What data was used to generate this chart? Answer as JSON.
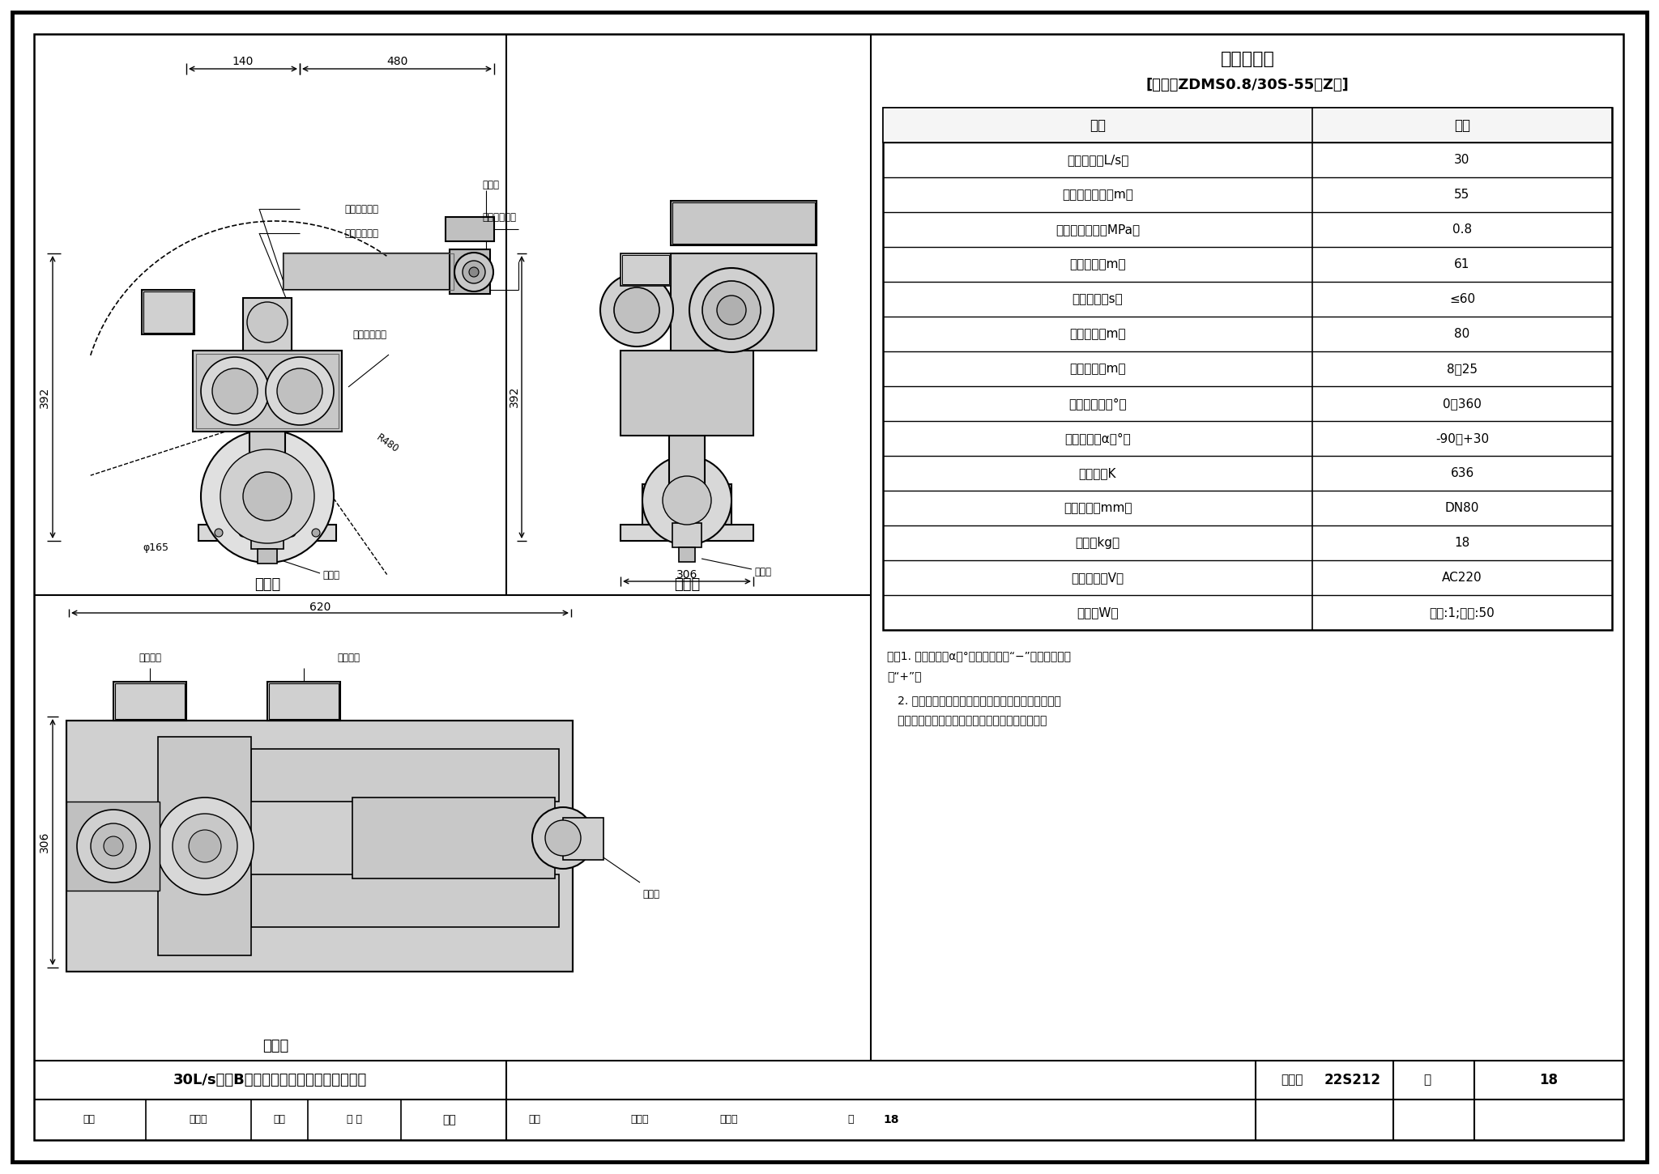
{
  "bg_color": "#ffffff",
  "border_color": "#000000",
  "table_title": "装置参数表",
  "table_model": "[型号：ZDMS0.8/30S-55（Z）]",
  "table_headers": [
    "项目",
    "指标"
  ],
  "table_rows": [
    [
      "额定流量（L/s）",
      "30"
    ],
    [
      "最大保护半径（m）",
      "55"
    ],
    [
      "额定工作压力（MPa）",
      "0.8"
    ],
    [
      "射流半径（m）",
      "61"
    ],
    [
      "定位时间（s）",
      "≤60"
    ],
    [
      "监控半径（m）",
      "80"
    ],
    [
      "安装高度（m）",
      "8～25"
    ],
    [
      "水平回转角（°）",
      "0～360"
    ],
    [
      "俰仰回转角α（°）",
      "-90～+30"
    ],
    [
      "流量系数K",
      "636"
    ],
    [
      "接口尺寸（mm）",
      "DN80"
    ],
    [
      "重量（kg）",
      "18"
    ],
    [
      "电机电压（V）",
      "AC220"
    ],
    [
      "功率（W）",
      "监视:1;扫描:50"
    ]
  ],
  "note1a": "注：1. 俰仰回转角α（°）为俰角时为“−”，为仰俰角时",
  "note1b": "为“+”。",
  "note2a": "   2. 自动消防炮在系统自动状态下，只能以平射和向下",
  "note2b": "   方喷射进行瞀准灭火，而不能做到仰射瞀准火源。",
  "front_view_label": "正视图",
  "side_view_label": "侧视图",
  "top_view_label": "俦视图",
  "dim_140": "140",
  "dim_480": "480",
  "dim_392": "392",
  "dim_phi165": "φ165",
  "dim_306": "306",
  "dim_620": "620",
  "dim_R480": "R480",
  "label_wogan": "垂直旋转蜗杆",
  "label_wolun": "垂直旋转蜗轮",
  "label_hongwai1": "红外定位装置",
  "label_chushuikou": "出水口",
  "label_hongwai2": "红外定位装置",
  "label_jinshuiguan1": "进水管",
  "label_jinshuiguan2": "进水管",
  "label_diantui1": "电动推杆",
  "label_diantui2": "电动推杆",
  "label_chushui_top": "出水口",
  "footer_desc": "30L/s直立B型自动消防炮外形尺寸及参数表",
  "footer_fig_label": "图集号",
  "footer_fig_val": "22S212",
  "footer_page_label": "页",
  "footer_page_num": "18",
  "footer_shenhe": "审核",
  "footer_zhang": "张立成",
  "footer_jiaodui": "校对",
  "footer_zhang2": "张 爽",
  "footer_shaodian": "绍典",
  "footer_sheji": "设计",
  "footer_zhao": "赵首权",
  "footer_sig2": "松永松"
}
